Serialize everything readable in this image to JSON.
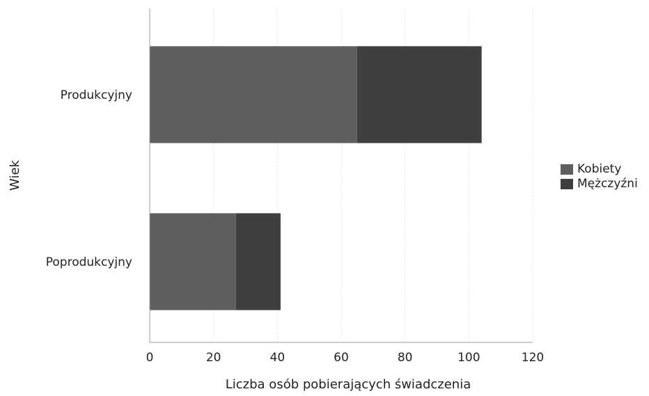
{
  "chart_data": {
    "type": "bar",
    "orientation": "horizontal",
    "stacked": true,
    "categories": [
      "Produkcyjny",
      "Poprodukcyjny"
    ],
    "series": [
      {
        "name": "Kobiety",
        "values": [
          65,
          27
        ],
        "color": "#5e5e5e"
      },
      {
        "name": "Mężczyźni",
        "values": [
          39,
          14
        ],
        "color": "#3f3f3f"
      }
    ],
    "xlabel": "Liczba osób pobierających świadczenia",
    "ylabel": "Wiek",
    "xlim": [
      0,
      120
    ],
    "xticks": [
      "0",
      "20",
      "40",
      "60",
      "80",
      "100",
      "120"
    ],
    "grid": true,
    "legend_position": "right"
  }
}
